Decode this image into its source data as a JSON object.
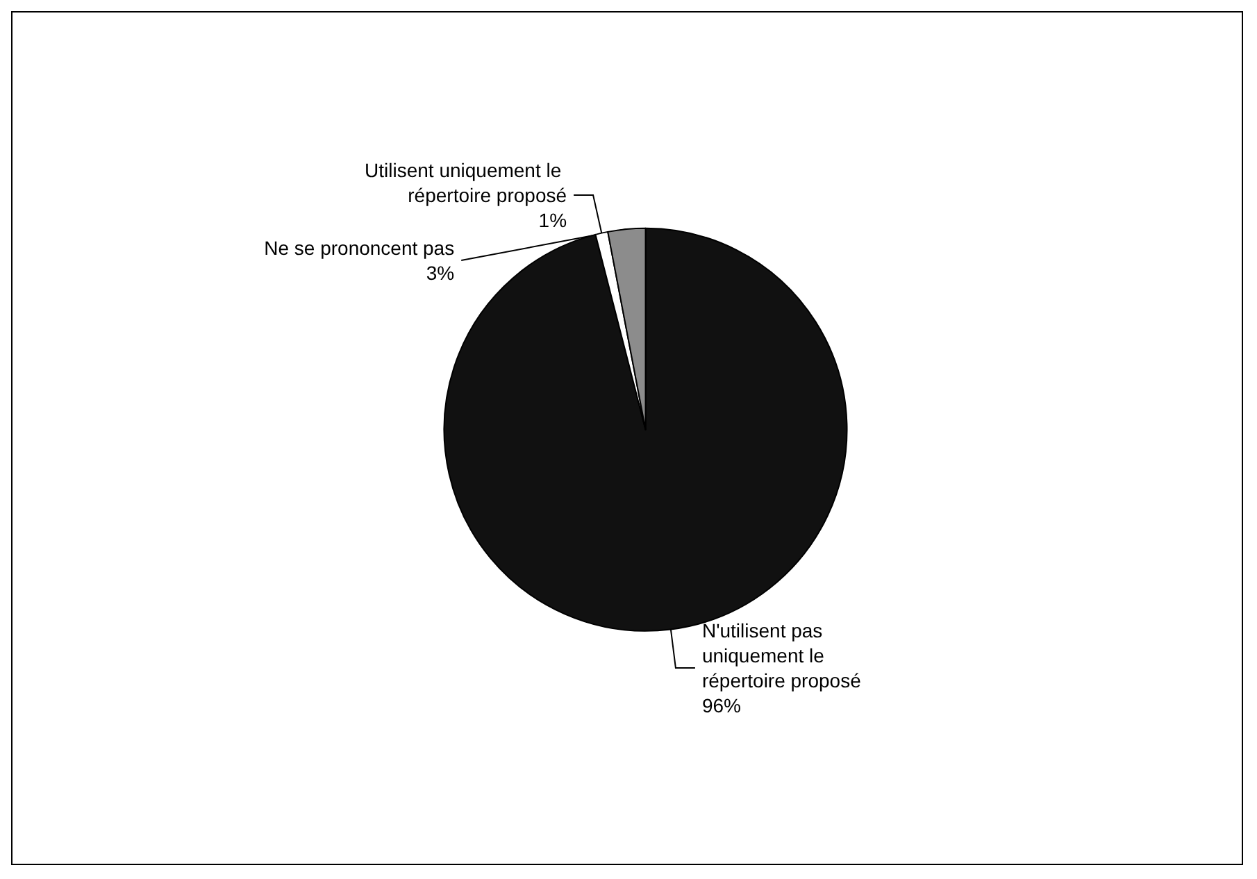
{
  "chart_data": {
    "type": "pie",
    "categories": [
      "N'utilisent pas uniquement le répertoire proposé",
      "Utilisent uniquement le répertoire proposé",
      "Ne se prononcent pas"
    ],
    "values": [
      96,
      1,
      3
    ],
    "colors": [
      "#111111",
      "#ffffff",
      "#8c8c8c"
    ],
    "value_labels": [
      "96%",
      "1%",
      "3%"
    ],
    "legend": false
  }
}
